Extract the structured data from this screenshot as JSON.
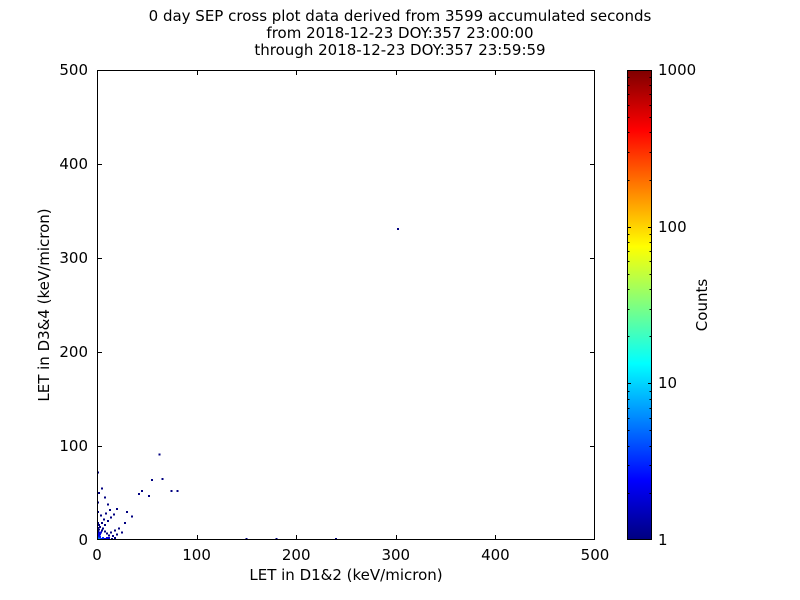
{
  "chart_data": {
    "type": "scatter",
    "title": "0 day SEP cross plot data derived from 3599 accumulated seconds",
    "subtitle_from": "from 2018-12-23 DOY:357 23:00:00",
    "subtitle_through": "through 2018-12-23 DOY:357 23:59:59",
    "xlabel": "LET in D1&2 (keV/micron)",
    "ylabel": "LET in D3&4 (keV/micron)",
    "xlim": [
      0,
      500
    ],
    "ylim": [
      0,
      500
    ],
    "xticks": [
      0,
      100,
      200,
      300,
      400,
      500
    ],
    "yticks": [
      0,
      100,
      200,
      300,
      400,
      500
    ],
    "grid": false,
    "legend": false,
    "colorbar": {
      "label": "Counts",
      "scale": "log",
      "min": 1,
      "max": 1000,
      "ticks": [
        1,
        10,
        100,
        1000
      ],
      "colormap": "jet"
    },
    "point_format": [
      "x",
      "y",
      "count"
    ],
    "points": [
      [
        0,
        0,
        8
      ],
      [
        1,
        0,
        10
      ],
      [
        2,
        0,
        9
      ],
      [
        3,
        0,
        7
      ],
      [
        4,
        0,
        5
      ],
      [
        5,
        0,
        4
      ],
      [
        6,
        0,
        4
      ],
      [
        7,
        0,
        3
      ],
      [
        8,
        0,
        3
      ],
      [
        9,
        0,
        3
      ],
      [
        10,
        0,
        2
      ],
      [
        12,
        0,
        2
      ],
      [
        14,
        0,
        2
      ],
      [
        16,
        0,
        2
      ],
      [
        18,
        0,
        2
      ],
      [
        20,
        0,
        1
      ],
      [
        22,
        0,
        1
      ],
      [
        25,
        0,
        1
      ],
      [
        28,
        0,
        1
      ],
      [
        30,
        0,
        1
      ],
      [
        33,
        0,
        1
      ],
      [
        36,
        0,
        1
      ],
      [
        40,
        0,
        1
      ],
      [
        44,
        0,
        1
      ],
      [
        48,
        0,
        1
      ],
      [
        52,
        0,
        1
      ],
      [
        56,
        0,
        1
      ],
      [
        60,
        0,
        1
      ],
      [
        64,
        0,
        1
      ],
      [
        68,
        0,
        1
      ],
      [
        72,
        0,
        1
      ],
      [
        76,
        0,
        1
      ],
      [
        80,
        0,
        1
      ],
      [
        85,
        0,
        1
      ],
      [
        90,
        0,
        1
      ],
      [
        95,
        0,
        1
      ],
      [
        100,
        0,
        1
      ],
      [
        120,
        0,
        1
      ],
      [
        135,
        0,
        1
      ],
      [
        150,
        1,
        1
      ],
      [
        180,
        1,
        1
      ],
      [
        210,
        0,
        1
      ],
      [
        240,
        1,
        1
      ],
      [
        258,
        0,
        1
      ],
      [
        0,
        1,
        9
      ],
      [
        1,
        1,
        10
      ],
      [
        2,
        1,
        8
      ],
      [
        3,
        1,
        6
      ],
      [
        4,
        1,
        4
      ],
      [
        5,
        1,
        3
      ],
      [
        6,
        2,
        3
      ],
      [
        8,
        1,
        2
      ],
      [
        10,
        2,
        2
      ],
      [
        12,
        2,
        2
      ],
      [
        15,
        1,
        1
      ],
      [
        18,
        2,
        1
      ],
      [
        0,
        2,
        6
      ],
      [
        1,
        2,
        5
      ],
      [
        2,
        3,
        4
      ],
      [
        3,
        3,
        3
      ],
      [
        1,
        4,
        3
      ],
      [
        2,
        5,
        2
      ],
      [
        0,
        5,
        2
      ],
      [
        1,
        6,
        2
      ],
      [
        3,
        6,
        2
      ],
      [
        2,
        8,
        2
      ],
      [
        1,
        9,
        1
      ],
      [
        0,
        10,
        1
      ],
      [
        2,
        11,
        1
      ],
      [
        1,
        13,
        1
      ],
      [
        3,
        14,
        1
      ],
      [
        2,
        16,
        1
      ],
      [
        1,
        18,
        1
      ],
      [
        0,
        20,
        1
      ],
      [
        4,
        8,
        2
      ],
      [
        5,
        10,
        1
      ],
      [
        6,
        12,
        1
      ],
      [
        8,
        9,
        1
      ],
      [
        10,
        7,
        1
      ],
      [
        12,
        5,
        1
      ],
      [
        14,
        8,
        1
      ],
      [
        16,
        4,
        1
      ],
      [
        18,
        10,
        1
      ],
      [
        20,
        6,
        1
      ],
      [
        22,
        12,
        1
      ],
      [
        25,
        8,
        1
      ],
      [
        8,
        16,
        1
      ],
      [
        5,
        18,
        1
      ],
      [
        11,
        20,
        1
      ],
      [
        7,
        22,
        1
      ],
      [
        14,
        24,
        1
      ],
      [
        4,
        26,
        1
      ],
      [
        9,
        28,
        1
      ],
      [
        13,
        32,
        1
      ],
      [
        20,
        33,
        1
      ],
      [
        8,
        45,
        1
      ],
      [
        5,
        55,
        1
      ],
      [
        1,
        30,
        1
      ],
      [
        1,
        40,
        1
      ],
      [
        2,
        50,
        1
      ],
      [
        0,
        60,
        1
      ],
      [
        0,
        70,
        2
      ],
      [
        1,
        72,
        1
      ],
      [
        35,
        25,
        1
      ],
      [
        28,
        18,
        1
      ],
      [
        30,
        30,
        1
      ],
      [
        17,
        27,
        1
      ],
      [
        11,
        38,
        1
      ],
      [
        42,
        49,
        1
      ],
      [
        45,
        52,
        1
      ],
      [
        52,
        47,
        1
      ],
      [
        55,
        64,
        1
      ],
      [
        66,
        65,
        1
      ],
      [
        63,
        91,
        1
      ],
      [
        75,
        52,
        1
      ],
      [
        81,
        52,
        1
      ],
      [
        302,
        331,
        1
      ]
    ]
  }
}
